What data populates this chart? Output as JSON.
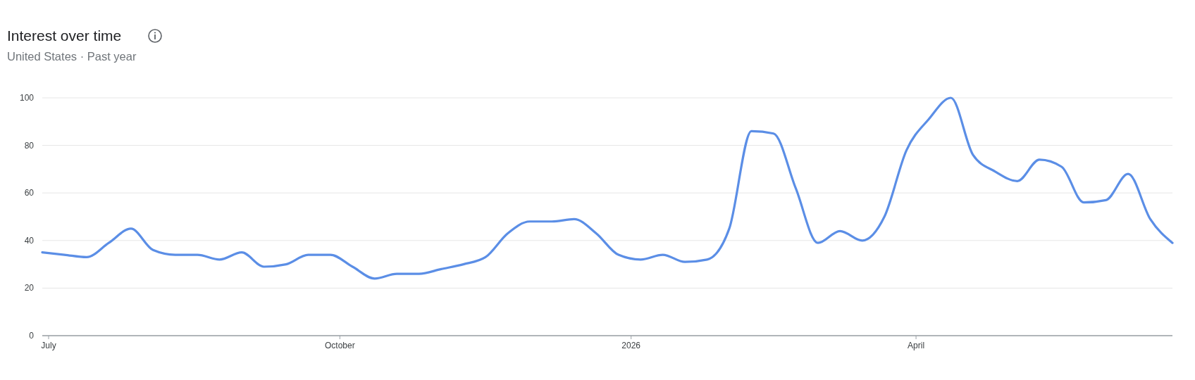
{
  "chart_data": {
    "type": "line",
    "title": "Interest over time",
    "subtitle": "United States · Past year",
    "x": [
      "2025-06-29",
      "2025-07-06",
      "2025-07-13",
      "2025-07-20",
      "2025-07-27",
      "2025-08-03",
      "2025-08-10",
      "2025-08-17",
      "2025-08-24",
      "2025-08-31",
      "2025-09-07",
      "2025-09-14",
      "2025-09-21",
      "2025-09-28",
      "2025-10-05",
      "2025-10-12",
      "2025-10-19",
      "2025-10-26",
      "2025-11-02",
      "2025-11-09",
      "2025-11-16",
      "2025-11-23",
      "2025-11-30",
      "2025-12-07",
      "2025-12-14",
      "2025-12-21",
      "2025-12-28",
      "2026-01-04",
      "2026-01-11",
      "2026-01-18",
      "2026-01-25",
      "2026-02-01",
      "2026-02-08",
      "2026-02-15",
      "2026-02-22",
      "2026-03-01",
      "2026-03-08",
      "2026-03-15",
      "2026-03-22",
      "2026-03-29",
      "2026-04-05",
      "2026-04-12",
      "2026-04-19",
      "2026-04-26",
      "2026-05-03",
      "2026-05-10",
      "2026-05-17",
      "2026-05-24",
      "2026-05-31",
      "2026-06-07",
      "2026-06-14",
      "2026-06-21"
    ],
    "series": [
      {
        "color": "#5b8ee6",
        "values": [
          35,
          34,
          33,
          39,
          45,
          36,
          34,
          34,
          32,
          35,
          29,
          30,
          34,
          34,
          29,
          24,
          26,
          26,
          28,
          30,
          33,
          43,
          48,
          48,
          49,
          43,
          34,
          32,
          34,
          31,
          32,
          45,
          86,
          85,
          62,
          39,
          44,
          40,
          50,
          78,
          91,
          100,
          76,
          69,
          65,
          74,
          71,
          56,
          57,
          68,
          49,
          39
        ]
      }
    ],
    "xlim": [
      "2025-06-29",
      "2026-06-21"
    ],
    "xticks": [
      {
        "value": "2025-07-01",
        "label": "July"
      },
      {
        "value": "2025-10-01",
        "label": "October"
      },
      {
        "value": "2026-01-01",
        "label": "2026"
      },
      {
        "value": "2026-04-01",
        "label": "April"
      }
    ],
    "ylim": [
      0,
      100
    ],
    "yticks": [
      0,
      20,
      40,
      60,
      80,
      100
    ],
    "grid": "y"
  }
}
